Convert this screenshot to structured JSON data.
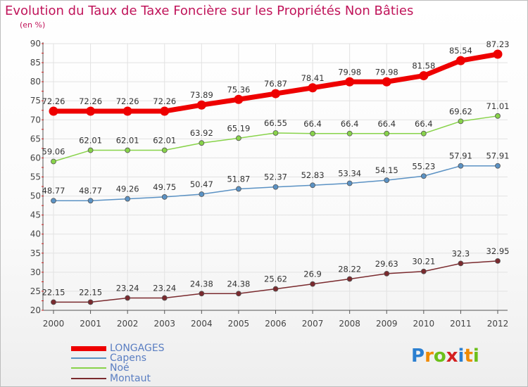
{
  "title": "Evolution du Taux de Taxe Foncière sur les Propriétés Non Bâties",
  "subtitle": "(en %)",
  "logo": {
    "letters": [
      "P",
      "r",
      "o",
      "x",
      "i",
      "t",
      "i"
    ],
    "colors": [
      "#2b7fd0",
      "#f08a00",
      "#6cbf1a",
      "#d42020",
      "#2b7fd0",
      "#f08a00",
      "#6cbf1a"
    ]
  },
  "chart_data": {
    "type": "line",
    "title": "Evolution du Taux de Taxe Foncière sur les Propriétés Non Bâties",
    "ylabel": "(en %)",
    "x": [
      "2000",
      "2001",
      "2002",
      "2003",
      "2004",
      "2005",
      "2006",
      "2007",
      "2008",
      "2009",
      "2010",
      "2011",
      "2012"
    ],
    "ylim": [
      20,
      90
    ],
    "yticks": [
      "20",
      "25",
      "30",
      "35",
      "40",
      "45",
      "50",
      "55",
      "60",
      "65",
      "70",
      "75",
      "80",
      "85",
      "90"
    ],
    "grid": true,
    "legend_position": "bottom-left",
    "series": [
      {
        "name": "LONGAGES",
        "color": "#ee0000",
        "values": [
          72.26,
          72.26,
          72.26,
          72.26,
          73.89,
          75.36,
          76.87,
          78.41,
          79.98,
          79.98,
          81.58,
          85.54,
          87.23
        ],
        "labels": [
          "72.26",
          "72.26",
          "72.26",
          "72.26",
          "73.89",
          "75.36",
          "76.87",
          "78.41",
          "79.98",
          "79.98",
          "81.58",
          "85.54",
          "87.23"
        ]
      },
      {
        "name": "Capens",
        "color": "#5b92c4",
        "values": [
          48.77,
          48.77,
          49.26,
          49.75,
          50.47,
          51.87,
          52.37,
          52.83,
          53.34,
          54.15,
          55.23,
          57.91,
          57.91
        ],
        "labels": [
          "48.77",
          "48.77",
          "49.26",
          "49.75",
          "50.47",
          "51.87",
          "52.37",
          "52.83",
          "53.34",
          "54.15",
          "55.23",
          "57.91",
          "57.91"
        ]
      },
      {
        "name": "Noé",
        "color": "#88d34a",
        "values": [
          59.06,
          62.01,
          62.01,
          62.01,
          63.92,
          65.19,
          66.55,
          66.4,
          66.4,
          66.4,
          66.4,
          69.62,
          71.01
        ],
        "labels": [
          "59.06",
          "62.01",
          "62.01",
          "62.01",
          "63.92",
          "65.19",
          "66.55",
          "66.4",
          "66.4",
          "66.4",
          "66.4",
          "69.62",
          "71.01"
        ]
      },
      {
        "name": "Montaut",
        "color": "#7a2a2e",
        "values": [
          22.15,
          22.15,
          23.24,
          23.24,
          24.38,
          24.38,
          25.62,
          26.9,
          28.22,
          29.63,
          30.21,
          32.3,
          32.95
        ],
        "labels": [
          "22.15",
          "22.15",
          "23.24",
          "23.24",
          "24.38",
          "24.38",
          "25.62",
          "26.9",
          "28.22",
          "29.63",
          "30.21",
          "32.3",
          "32.95"
        ]
      }
    ]
  }
}
